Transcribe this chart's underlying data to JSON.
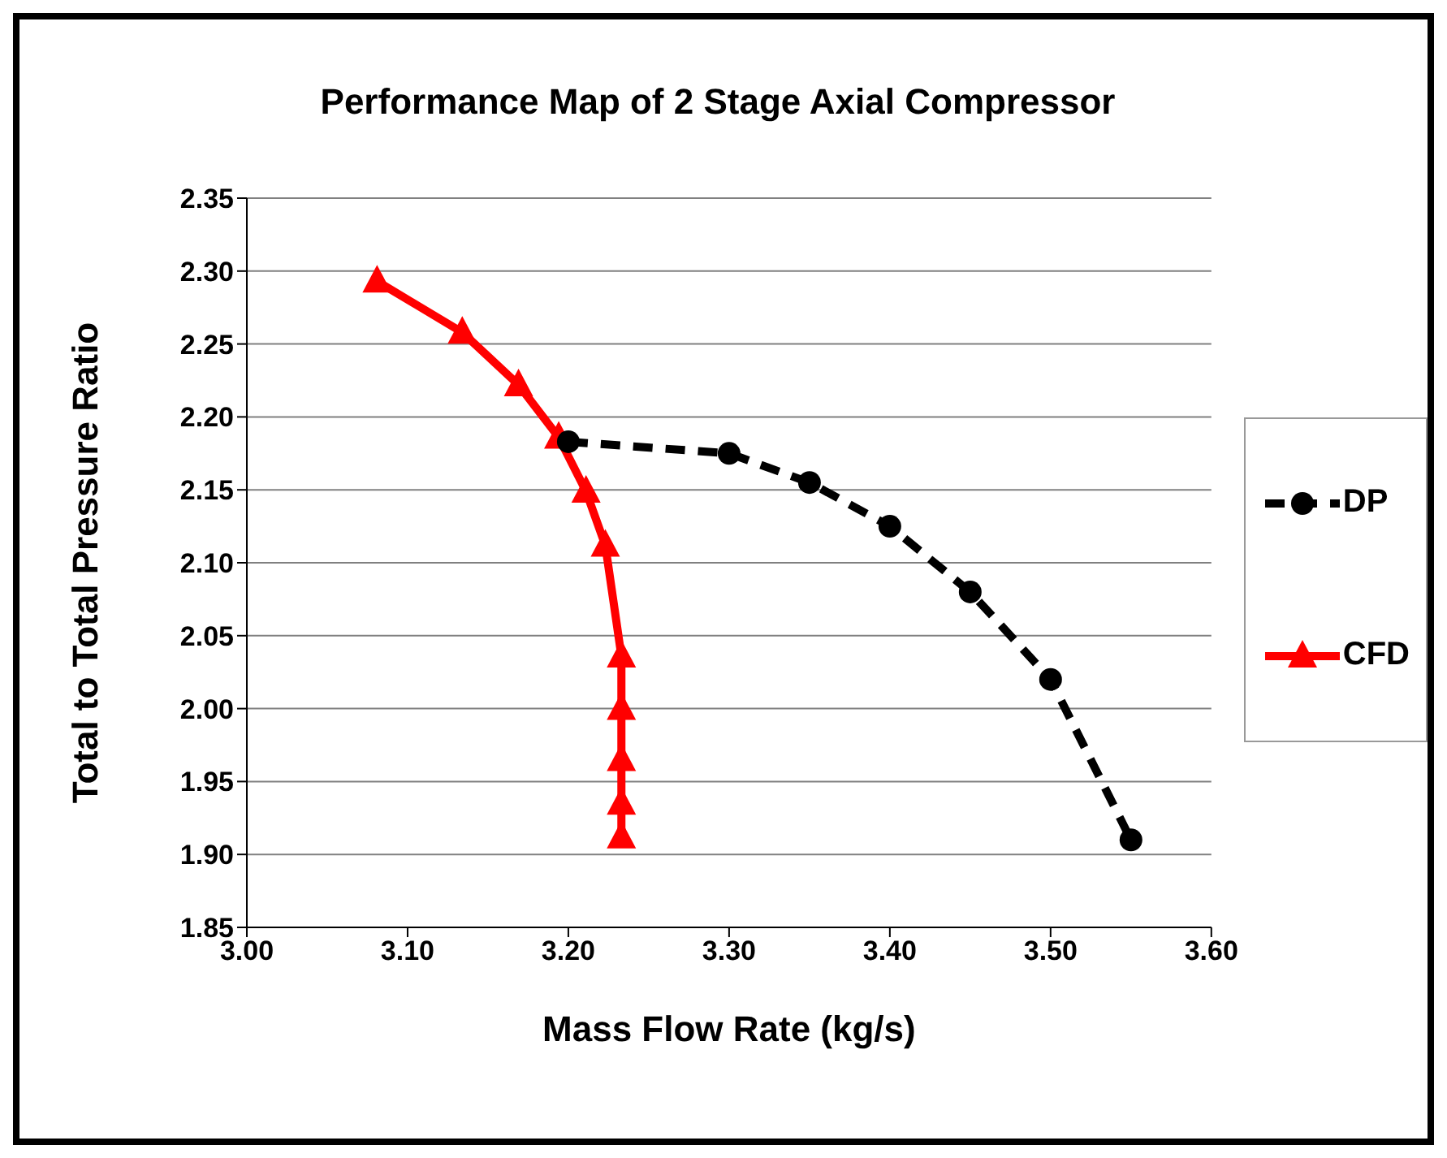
{
  "chart_data": {
    "type": "line",
    "title": "Performance Map of 2 Stage Axial Compressor",
    "xlabel": "Mass Flow Rate (kg/s)",
    "ylabel": "Total to Total Pressure Ratio",
    "xlim": [
      3.0,
      3.6
    ],
    "xticks": [
      {
        "value": 3.0,
        "label": "3.00"
      },
      {
        "value": 3.1,
        "label": "3.10"
      },
      {
        "value": 3.2,
        "label": "3.20"
      },
      {
        "value": 3.3,
        "label": "3.30"
      },
      {
        "value": 3.4,
        "label": "3.40"
      },
      {
        "value": 3.5,
        "label": "3.50"
      },
      {
        "value": 3.6,
        "label": "3.60"
      }
    ],
    "ylim": [
      1.85,
      2.35
    ],
    "yticks": [
      1.85,
      {
        "value": 1.9,
        "label": "1.90"
      },
      1.95,
      {
        "value": 2.0,
        "label": "2.00"
      },
      2.05,
      {
        "value": 2.1,
        "label": "2.10"
      },
      2.15,
      {
        "value": 2.2,
        "label": "2.20"
      },
      2.25,
      {
        "value": 2.3,
        "label": "2.30"
      },
      2.35
    ],
    "grid": "y",
    "legend": "right",
    "series": [
      {
        "name": "DP",
        "color": "#000000",
        "marker": "circle",
        "line_style": "dashed",
        "x": [
          3.2,
          3.3,
          3.35,
          3.4,
          3.45,
          3.5,
          3.55
        ],
        "values": [
          2.183,
          2.175,
          2.155,
          2.125,
          2.08,
          2.02,
          1.91
        ]
      },
      {
        "name": "CFD",
        "color": "#ff0000",
        "marker": "triangle",
        "line_style": "solid",
        "x": [
          3.081,
          3.134,
          3.169,
          3.194,
          3.211,
          3.223,
          3.233,
          3.233,
          3.233,
          3.233,
          3.233
        ],
        "values": [
          2.293,
          2.258,
          2.222,
          2.186,
          2.149,
          2.112,
          2.036,
          2.0,
          1.965,
          1.935,
          1.912
        ]
      }
    ]
  }
}
